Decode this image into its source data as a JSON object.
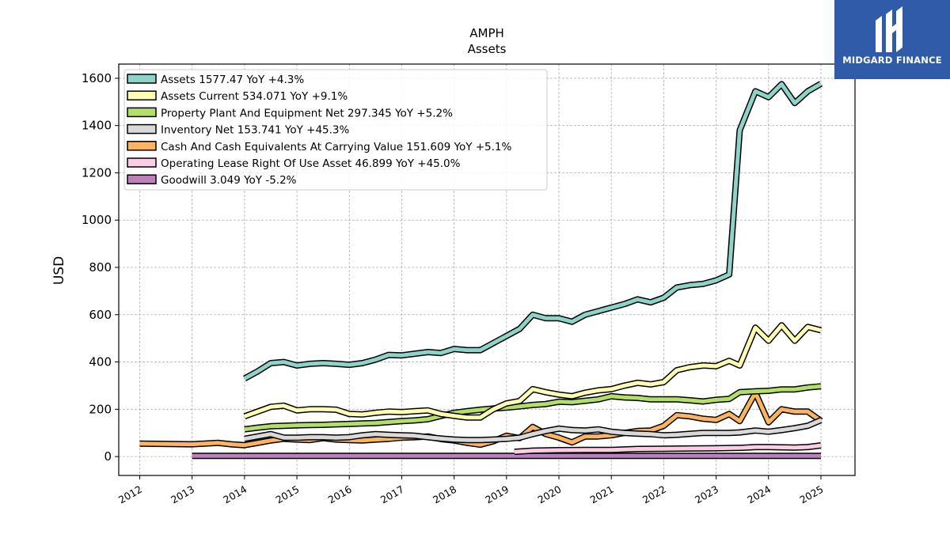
{
  "brand": {
    "name": "MIDGARD FINANCE"
  },
  "chart_data": {
    "type": "line",
    "title": "AMPH",
    "subtitle": "Assets",
    "ylabel": "USD",
    "xlabel": "",
    "xlim": [
      2011.6,
      2025.65
    ],
    "ylim": [
      -80,
      1660
    ],
    "yticks": [
      0,
      200,
      400,
      600,
      800,
      1000,
      1200,
      1400,
      1600
    ],
    "xticks": [
      "2012",
      "2013",
      "2014",
      "2015",
      "2016",
      "2017",
      "2018",
      "2019",
      "2020",
      "2021",
      "2022",
      "2023",
      "2024",
      "2025"
    ],
    "grid": true,
    "legend_position": "top-left",
    "series": [
      {
        "name": "Assets",
        "legend": "Assets  1577.47 YoY +4.3%",
        "color": "#8dd3c7",
        "x": [
          2014.0,
          2014.25,
          2014.5,
          2014.75,
          2015.0,
          2015.25,
          2015.5,
          2015.75,
          2016.0,
          2016.25,
          2016.5,
          2016.75,
          2017.0,
          2017.25,
          2017.5,
          2017.75,
          2018.0,
          2018.25,
          2018.5,
          2018.75,
          2019.0,
          2019.25,
          2019.5,
          2019.75,
          2020.0,
          2020.25,
          2020.5,
          2020.75,
          2021.0,
          2021.25,
          2021.5,
          2021.75,
          2022.0,
          2022.25,
          2022.5,
          2022.75,
          2023.0,
          2023.25,
          2023.45,
          2023.75,
          2024.0,
          2024.25,
          2024.5,
          2024.75,
          2025.0
        ],
        "y": [
          330,
          360,
          395,
          400,
          385,
          392,
          395,
          392,
          388,
          395,
          410,
          430,
          428,
          435,
          442,
          438,
          455,
          450,
          450,
          480,
          510,
          540,
          600,
          585,
          585,
          570,
          600,
          615,
          630,
          645,
          665,
          652,
          672,
          715,
          725,
          730,
          745,
          770,
          1380,
          1545,
          1520,
          1575,
          1495,
          1545,
          1577
        ]
      },
      {
        "name": "Assets Current",
        "legend": "Assets Current  534.071 YoY +9.1%",
        "color": "#ffffb3",
        "x": [
          2014.0,
          2014.25,
          2014.5,
          2014.75,
          2015.0,
          2015.25,
          2015.5,
          2015.75,
          2016.0,
          2016.25,
          2016.5,
          2016.75,
          2017.0,
          2017.25,
          2017.5,
          2017.75,
          2018.0,
          2018.25,
          2018.5,
          2018.75,
          2019.0,
          2019.25,
          2019.5,
          2019.75,
          2020.0,
          2020.25,
          2020.5,
          2020.75,
          2021.0,
          2021.25,
          2021.5,
          2021.75,
          2022.0,
          2022.25,
          2022.5,
          2022.75,
          2023.0,
          2023.25,
          2023.45,
          2023.75,
          2024.0,
          2024.25,
          2024.5,
          2024.75,
          2025.0
        ],
        "y": [
          170,
          190,
          210,
          215,
          195,
          200,
          200,
          198,
          180,
          178,
          185,
          190,
          188,
          192,
          195,
          180,
          172,
          165,
          165,
          200,
          225,
          235,
          285,
          272,
          262,
          255,
          270,
          280,
          285,
          300,
          312,
          305,
          315,
          365,
          378,
          385,
          382,
          405,
          385,
          545,
          490,
          555,
          490,
          548,
          534
        ]
      },
      {
        "name": "Property Plant And Equipment Net",
        "legend": "Property Plant And Equipment Net  297.345 YoY +5.2%",
        "color": "#b3de69",
        "x": [
          2014.0,
          2014.25,
          2014.5,
          2014.75,
          2015.0,
          2015.25,
          2015.5,
          2015.75,
          2016.0,
          2016.25,
          2016.5,
          2016.75,
          2017.0,
          2017.25,
          2017.5,
          2017.75,
          2018.0,
          2018.25,
          2018.5,
          2018.75,
          2019.0,
          2019.25,
          2019.5,
          2019.75,
          2020.0,
          2020.25,
          2020.5,
          2020.75,
          2021.0,
          2021.25,
          2021.5,
          2021.75,
          2022.0,
          2022.25,
          2022.5,
          2022.75,
          2023.0,
          2023.25,
          2023.45,
          2023.75,
          2024.0,
          2024.25,
          2024.5,
          2024.75,
          2025.0
        ],
        "y": [
          115,
          122,
          128,
          130,
          132,
          133,
          134,
          136,
          138,
          140,
          142,
          146,
          150,
          153,
          158,
          172,
          185,
          192,
          198,
          203,
          207,
          212,
          218,
          222,
          232,
          230,
          236,
          242,
          255,
          250,
          248,
          242,
          242,
          242,
          238,
          233,
          240,
          244,
          272,
          276,
          278,
          284,
          284,
          292,
          297
        ]
      },
      {
        "name": "Inventory Net",
        "legend": "Inventory Net  153.741 YoY +45.3%",
        "color": "#d9d9d9",
        "x": [
          2014.0,
          2014.25,
          2014.5,
          2014.75,
          2015.0,
          2015.25,
          2015.5,
          2015.75,
          2016.0,
          2016.25,
          2016.5,
          2016.75,
          2017.0,
          2017.25,
          2017.5,
          2017.75,
          2018.0,
          2018.25,
          2018.5,
          2018.75,
          2019.0,
          2019.25,
          2019.5,
          2019.75,
          2020.0,
          2020.25,
          2020.5,
          2020.75,
          2021.0,
          2021.25,
          2021.5,
          2021.75,
          2022.0,
          2022.25,
          2022.5,
          2022.75,
          2023.0,
          2023.25,
          2023.45,
          2023.75,
          2024.0,
          2024.25,
          2024.5,
          2024.75,
          2025.0
        ],
        "y": [
          75,
          85,
          95,
          80,
          80,
          82,
          82,
          80,
          82,
          90,
          95,
          92,
          90,
          88,
          82,
          76,
          72,
          70,
          70,
          72,
          75,
          80,
          95,
          108,
          118,
          112,
          110,
          115,
          105,
          100,
          97,
          95,
          90,
          92,
          96,
          100,
          100,
          100,
          102,
          110,
          105,
          112,
          120,
          130,
          154
        ]
      },
      {
        "name": "Cash And Cash Equivalents At Carrying Value",
        "legend": "Cash And Cash Equivalents At Carrying Value  151.609 YoY +5.1%",
        "color": "#fdb462",
        "x": [
          2012.0,
          2013.0,
          2013.5,
          2013.75,
          2014.0,
          2014.25,
          2014.5,
          2014.75,
          2015.0,
          2015.25,
          2015.5,
          2015.75,
          2016.0,
          2016.25,
          2016.5,
          2016.75,
          2017.0,
          2017.25,
          2017.5,
          2017.75,
          2018.0,
          2018.25,
          2018.5,
          2018.75,
          2019.0,
          2019.25,
          2019.5,
          2019.75,
          2020.0,
          2020.25,
          2020.5,
          2020.75,
          2021.0,
          2021.25,
          2021.5,
          2021.75,
          2022.0,
          2022.25,
          2022.5,
          2022.75,
          2023.0,
          2023.25,
          2023.45,
          2023.75,
          2024.0,
          2024.25,
          2024.5,
          2024.75,
          2025.0
        ],
        "y": [
          55,
          52,
          58,
          52,
          48,
          58,
          68,
          75,
          72,
          70,
          78,
          72,
          70,
          68,
          72,
          75,
          80,
          82,
          85,
          74,
          68,
          58,
          50,
          65,
          88,
          78,
          125,
          95,
          80,
          60,
          85,
          85,
          90,
          100,
          108,
          110,
          130,
          175,
          170,
          160,
          155,
          180,
          150,
          270,
          145,
          200,
          190,
          190,
          151
        ]
      },
      {
        "name": "Operating Lease Right Of Use Asset",
        "legend": "Operating Lease Right Of Use Asset  46.899 YoY +45.0%",
        "color": "#fccde5",
        "x": [
          2019.15,
          2019.5,
          2020.0,
          2020.5,
          2021.0,
          2021.5,
          2022.0,
          2022.5,
          2023.0,
          2023.5,
          2023.75,
          2024.0,
          2024.5,
          2024.75,
          2025.0
        ],
        "y": [
          20,
          25,
          27,
          28,
          28,
          32,
          33,
          34,
          35,
          37,
          40,
          40,
          38,
          40,
          47
        ]
      },
      {
        "name": "Goodwill",
        "legend": "Goodwill  3.049 YoY -5.2%",
        "color": "#bc80bd",
        "x": [
          2013.0,
          2025.0
        ],
        "y": [
          3,
          3
        ]
      }
    ]
  }
}
